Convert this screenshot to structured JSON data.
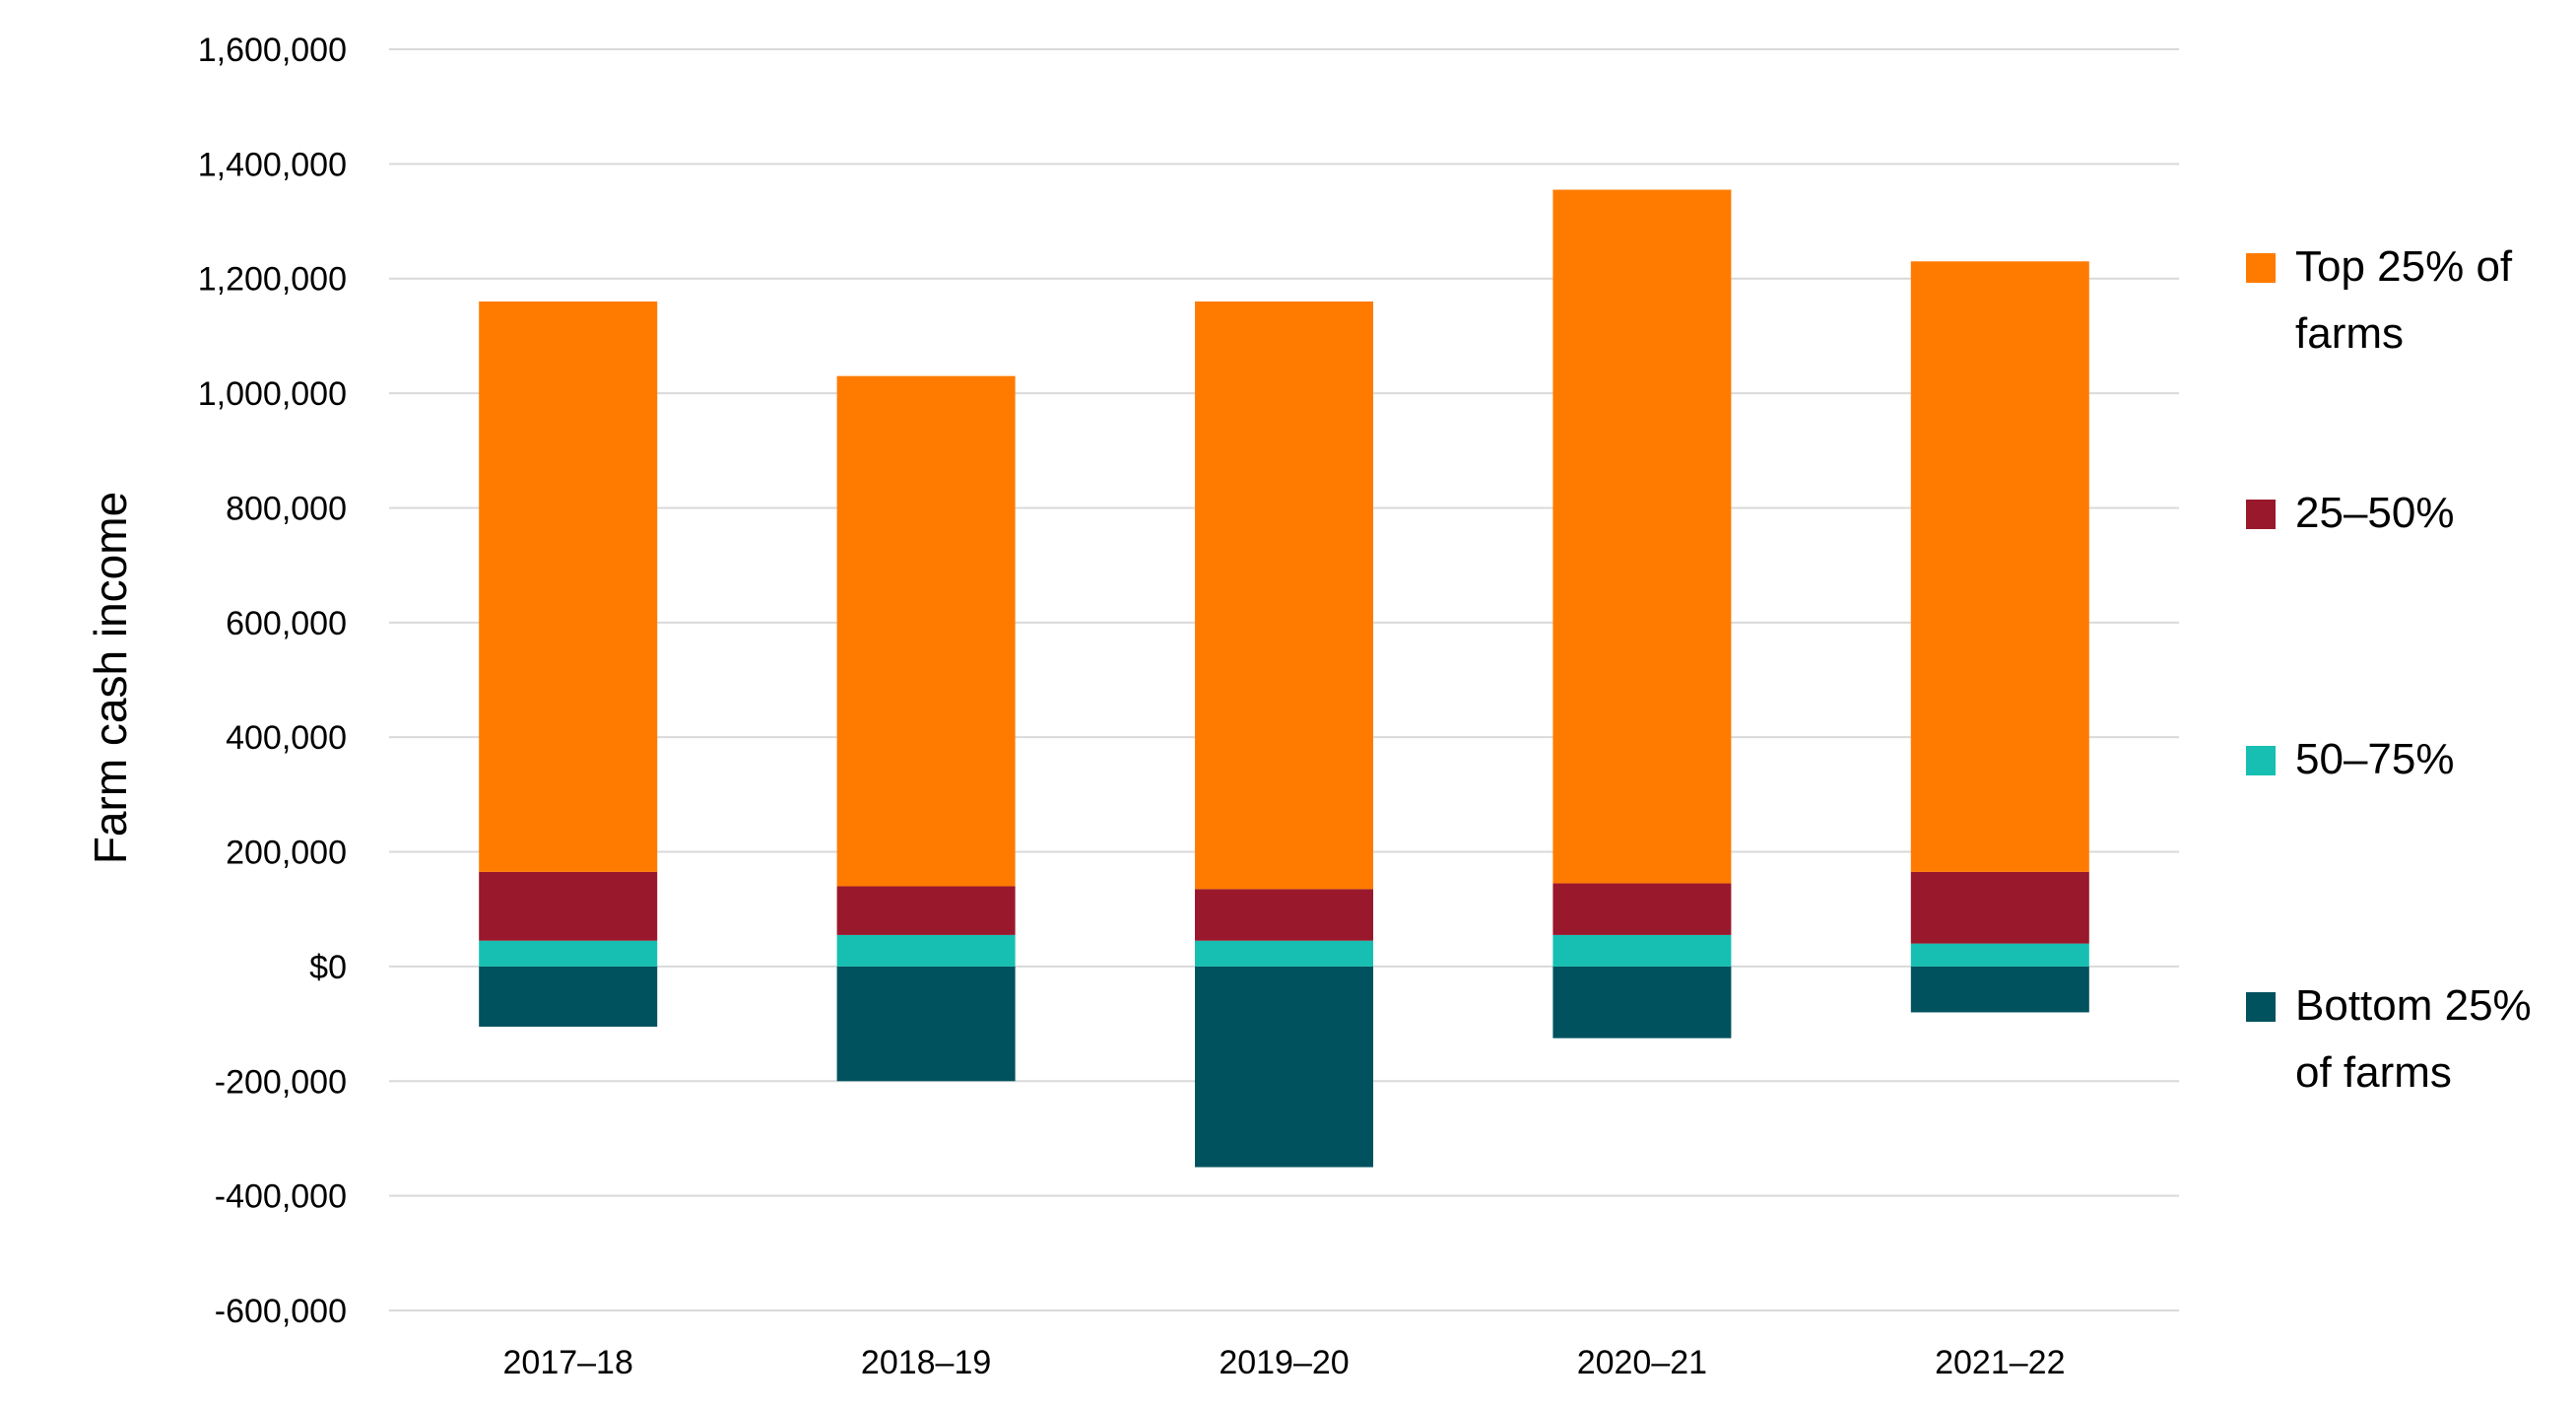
{
  "chart_data": {
    "type": "bar",
    "stacked": true,
    "categories": [
      "2017–18",
      "2018–19",
      "2019–20",
      "2020–21",
      "2021–22"
    ],
    "ylabel": "Farm cash income",
    "xlabel": "",
    "ylim": [
      -600000,
      1600000
    ],
    "yticks": [
      -600000,
      -400000,
      -200000,
      0,
      200000,
      400000,
      600000,
      800000,
      1000000,
      1200000,
      1400000,
      1600000
    ],
    "ytick_labels": [
      "-600,000",
      "-400,000",
      "-200,000",
      "$0",
      "200,000",
      "400,000",
      "600,000",
      "800,000",
      "1,000,000",
      "1,200,000",
      "1,400,000",
      "1,600,000"
    ],
    "grid": true,
    "legend_position": "right",
    "series": [
      {
        "name": "Bottom 25% of farms",
        "legend_lines": [
          "Bottom 25%",
          "of farms"
        ],
        "color": "#00525e",
        "values": [
          -105000,
          -200000,
          -350000,
          -125000,
          -80000
        ]
      },
      {
        "name": "50–75%",
        "legend_lines": [
          "50–75%"
        ],
        "color": "#17bfb2",
        "values": [
          45000,
          55000,
          45000,
          55000,
          40000
        ]
      },
      {
        "name": "25–50%",
        "legend_lines": [
          "25–50%"
        ],
        "color": "#99182c",
        "values": [
          120000,
          85000,
          90000,
          90000,
          125000
        ]
      },
      {
        "name": "Top 25% of farms",
        "legend_lines": [
          "Top 25% of",
          "farms"
        ],
        "color": "#ff7b00",
        "values": [
          995000,
          890000,
          1025000,
          1210000,
          1065000
        ]
      }
    ]
  }
}
